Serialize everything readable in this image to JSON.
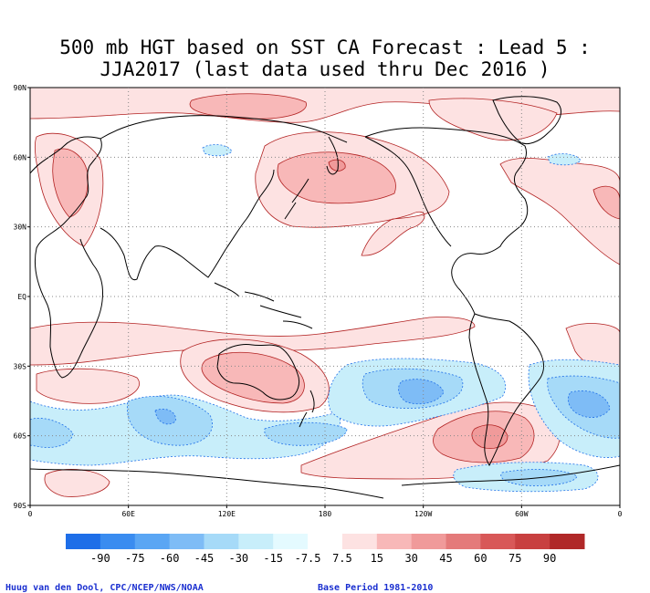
{
  "title_line1": "500 mb HGT based on SST CA Forecast : Lead 5 :",
  "title_line2": "JJA2017 (last data used thru Dec 2016 )",
  "lat_labels": [
    "90N",
    "60N",
    "30N",
    "EQ",
    "30S",
    "60S",
    "90S"
  ],
  "lon_labels": [
    "0",
    "60E",
    "120E",
    "180",
    "120W",
    "60W",
    "0"
  ],
  "legend": {
    "labels": [
      "-90",
      "-75",
      "-60",
      "-45",
      "-30",
      "-15",
      "-7.5",
      "7.5",
      "15",
      "30",
      "45",
      "60",
      "75",
      "90"
    ],
    "colors": [
      "#1e6ee8",
      "#3a8cf0",
      "#5aa6f4",
      "#7ebcf6",
      "#a6daf8",
      "#c8eefa",
      "#e4faff",
      "#ffffff",
      "#fde2e2",
      "#f8b8b8",
      "#f09a9a",
      "#e47a7a",
      "#d85858",
      "#c84040",
      "#b02828"
    ]
  },
  "colors": {
    "pos1": "#fde2e2",
    "pos2": "#f8b8b8",
    "pos3": "#f09a9a",
    "neg1": "#c8eefa",
    "neg2": "#a6daf8",
    "neg3": "#7ebcf6",
    "contour_pos": "#b22222",
    "contour_neg": "#1e6ee8",
    "coast": "#000000"
  },
  "credit": "Huug van den Dool, CPC/NCEP/NWS/NOAA",
  "base_period": "Base Period 1981-2010"
}
